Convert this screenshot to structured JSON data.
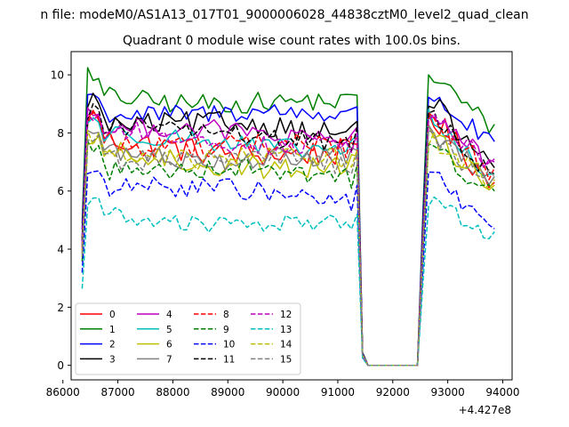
{
  "suptitle": "n file: modeM0/AS1A13_017T01_9000006028_44838cztM0_level2_quad_clean",
  "chart_data": {
    "type": "line",
    "title": "Quadrant 0 module wise count rates with 100.0s bins.",
    "xlabel": "",
    "ylabel": "",
    "offset_text": "+4.427e8",
    "xlim": [
      86150,
      94170
    ],
    "ylim": [
      -0.5,
      10.8
    ],
    "x_ticks": [
      86000,
      87000,
      88000,
      89000,
      90000,
      91000,
      92000,
      93000,
      94000
    ],
    "x_tick_labels": [
      "86000",
      "87000",
      "88000",
      "89000",
      "90000",
      "91000",
      "92000",
      "93000",
      "94000"
    ],
    "y_ticks": [
      0,
      2,
      4,
      6,
      8,
      10
    ],
    "y_tick_labels": [
      "0",
      "2",
      "4",
      "6",
      "8",
      "10"
    ],
    "grid": false,
    "legend_position": "lower-left",
    "legend_ncol": 4,
    "time_range": {
      "start": 86350,
      "step": 100,
      "data_end": 91350,
      "drop_end": 91550,
      "gap_end": 92450,
      "rise_end": 92650,
      "end": 93850
    },
    "series": [
      {
        "name": "0",
        "color": "#ff0000",
        "dash": "solid",
        "level": 7.2,
        "peak": 8.9,
        "end": 6.3,
        "amp": 0.45
      },
      {
        "name": "1",
        "color": "#008000",
        "dash": "solid",
        "level": 8.9,
        "peak": 10.3,
        "end": 8.3,
        "amp": 0.35
      },
      {
        "name": "2",
        "color": "#0000ff",
        "dash": "solid",
        "level": 8.5,
        "peak": 9.6,
        "end": 7.7,
        "amp": 0.35
      },
      {
        "name": "3",
        "color": "#000000",
        "dash": "solid",
        "level": 8.0,
        "peak": 9.4,
        "end": 6.8,
        "amp": 0.4
      },
      {
        "name": "4",
        "color": "#bf00bf",
        "dash": "solid",
        "level": 7.8,
        "peak": 9.0,
        "end": 7.0,
        "amp": 0.35
      },
      {
        "name": "5",
        "color": "#00bfbf",
        "dash": "solid",
        "level": 7.5,
        "peak": 8.7,
        "end": 6.6,
        "amp": 0.35
      },
      {
        "name": "6",
        "color": "#bfbf00",
        "dash": "solid",
        "level": 6.8,
        "peak": 8.2,
        "end": 6.2,
        "amp": 0.4
      },
      {
        "name": "7",
        "color": "#808080",
        "dash": "solid",
        "level": 7.0,
        "peak": 8.3,
        "end": 6.5,
        "amp": 0.35
      },
      {
        "name": "8",
        "color": "#ff0000",
        "dash": "dashed",
        "level": 7.4,
        "peak": 8.8,
        "end": 6.8,
        "amp": 0.4
      },
      {
        "name": "9",
        "color": "#008000",
        "dash": "dashed",
        "level": 6.5,
        "peak": 7.8,
        "end": 6.0,
        "amp": 0.35
      },
      {
        "name": "10",
        "color": "#0000ff",
        "dash": "dashed",
        "level": 5.8,
        "peak": 6.9,
        "end": 4.7,
        "amp": 0.35
      },
      {
        "name": "11",
        "color": "#000000",
        "dash": "dashed",
        "level": 7.8,
        "peak": 9.0,
        "end": 6.6,
        "amp": 0.35
      },
      {
        "name": "12",
        "color": "#bf00bf",
        "dash": "dashed",
        "level": 7.6,
        "peak": 8.8,
        "end": 7.1,
        "amp": 0.35
      },
      {
        "name": "13",
        "color": "#00bfbf",
        "dash": "dashed",
        "level": 4.8,
        "peak": 5.9,
        "end": 4.6,
        "amp": 0.3
      },
      {
        "name": "14",
        "color": "#bfbf00",
        "dash": "dashed",
        "level": 7.0,
        "peak": 8.1,
        "end": 6.4,
        "amp": 0.35
      },
      {
        "name": "15",
        "color": "#808080",
        "dash": "dashed",
        "level": 6.9,
        "peak": 8.0,
        "end": 6.5,
        "amp": 0.35
      }
    ]
  }
}
